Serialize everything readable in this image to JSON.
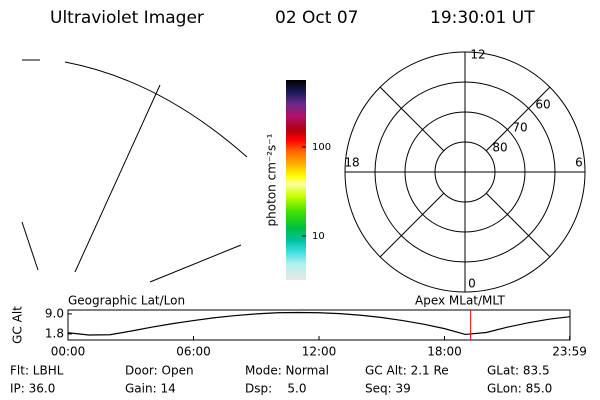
{
  "header": {
    "instrument": "Ultraviolet Imager",
    "date": "02 Oct 07",
    "time": "19:30:01 UT"
  },
  "colorbar": {
    "label": "photon cm⁻²s⁻¹",
    "ticks": [
      "100",
      "10"
    ]
  },
  "polar": {
    "mlt_labels": [
      "12",
      "18",
      "6",
      "0"
    ],
    "lat_labels": [
      "60",
      "70",
      "80"
    ]
  },
  "captions": {
    "left": "Geographic Lat/Lon",
    "right": "Apex MLat/MLT"
  },
  "chart_data": {
    "type": "line",
    "ylabel": "GC Alt",
    "x": [
      0,
      1,
      2,
      3,
      4,
      5,
      6,
      7,
      8,
      9,
      10,
      11,
      12,
      13,
      14,
      15,
      16,
      17,
      18,
      19,
      20,
      21,
      22,
      23,
      24
    ],
    "series": [
      {
        "color": "#000000",
        "values": [
          2.2,
          1.4,
          1.5,
          2.8,
          4.2,
          5.5,
          6.6,
          7.6,
          8.4,
          9.0,
          9.4,
          9.5,
          9.4,
          9.1,
          8.5,
          7.7,
          6.6,
          5.3,
          3.7,
          1.6,
          2.3,
          4.2,
          5.8,
          7.1,
          8.0
        ]
      }
    ],
    "xlim": [
      0,
      24
    ],
    "ylim": [
      -0.4,
      10.4
    ],
    "xticks": [
      {
        "value": 0,
        "label": "00:00"
      },
      {
        "value": 6,
        "label": "06:00"
      },
      {
        "value": 12,
        "label": "12:00"
      },
      {
        "value": 18,
        "label": "18:00"
      },
      {
        "value": 23.98,
        "label": "23:59"
      }
    ],
    "yticks": [
      {
        "value": 9,
        "label": "9.0"
      },
      1.8
    ],
    "marker": {
      "x": 19.25,
      "color": "#ff0000"
    }
  },
  "info": [
    [
      "Flt: LBHL",
      "Door: Open",
      "Mode: Normal",
      "GC Alt: 2.1 Re",
      "GLat: 83.5"
    ],
    [
      "IP: 36.0",
      "Gain: 14",
      "Dsp:    5.0",
      "Seq: 39",
      "GLon: 85.0"
    ]
  ]
}
